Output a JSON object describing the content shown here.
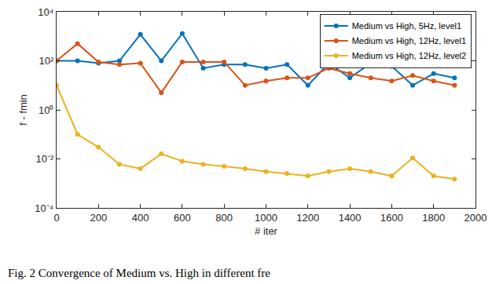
{
  "chart_data": {
    "type": "line",
    "x_label": "# iter",
    "y_label": "f - fmin",
    "caption": "Fig. 2 Convergence of Medium vs. High in different fre",
    "log": "y",
    "grid": false,
    "legend": "upper right",
    "marker": "circle",
    "x": [
      0,
      100,
      200,
      300,
      400,
      500,
      600,
      700,
      800,
      900,
      1000,
      1100,
      1200,
      1300,
      1400,
      1500,
      1600,
      1700,
      1800,
      1900
    ],
    "series": [
      {
        "name": "Medium vs High, 5Hz, level1",
        "color": "#0072BD",
        "values": [
          100,
          100,
          80,
          100,
          1200,
          100,
          1300,
          50,
          70,
          70,
          50,
          70,
          10,
          80,
          20,
          80,
          60,
          10,
          30,
          20
        ]
      },
      {
        "name": "Medium vs High, 12Hz, level1",
        "color": "#D95319",
        "values": [
          100,
          500,
          90,
          70,
          80,
          5,
          90,
          90,
          90,
          10,
          15,
          20,
          20,
          50,
          30,
          20,
          15,
          25,
          15,
          10
        ]
      },
      {
        "name": "Medium vs High, 12Hz, level2",
        "color": "#EDB120",
        "values": [
          10,
          0.1,
          0.03,
          0.006,
          0.004,
          0.016,
          0.008,
          0.006,
          0.005,
          0.004,
          0.003,
          0.0025,
          0.002,
          0.003,
          0.004,
          0.003,
          0.002,
          0.011,
          0.002,
          0.0015
        ]
      }
    ],
    "xlim": [
      0,
      2000
    ],
    "xticks": [
      0,
      200,
      400,
      600,
      800,
      1000,
      1200,
      1400,
      1600,
      1800,
      2000
    ],
    "ylim": [
      0.0001,
      10000
    ],
    "yticks": [
      {
        "value": 0.0001,
        "label": "10⁻⁴"
      },
      {
        "value": 0.01,
        "label": "10⁻²"
      },
      {
        "value": 1,
        "label": "10⁰"
      },
      {
        "value": 100,
        "label": "10²"
      },
      {
        "value": 10000,
        "label": "10⁴"
      }
    ]
  }
}
